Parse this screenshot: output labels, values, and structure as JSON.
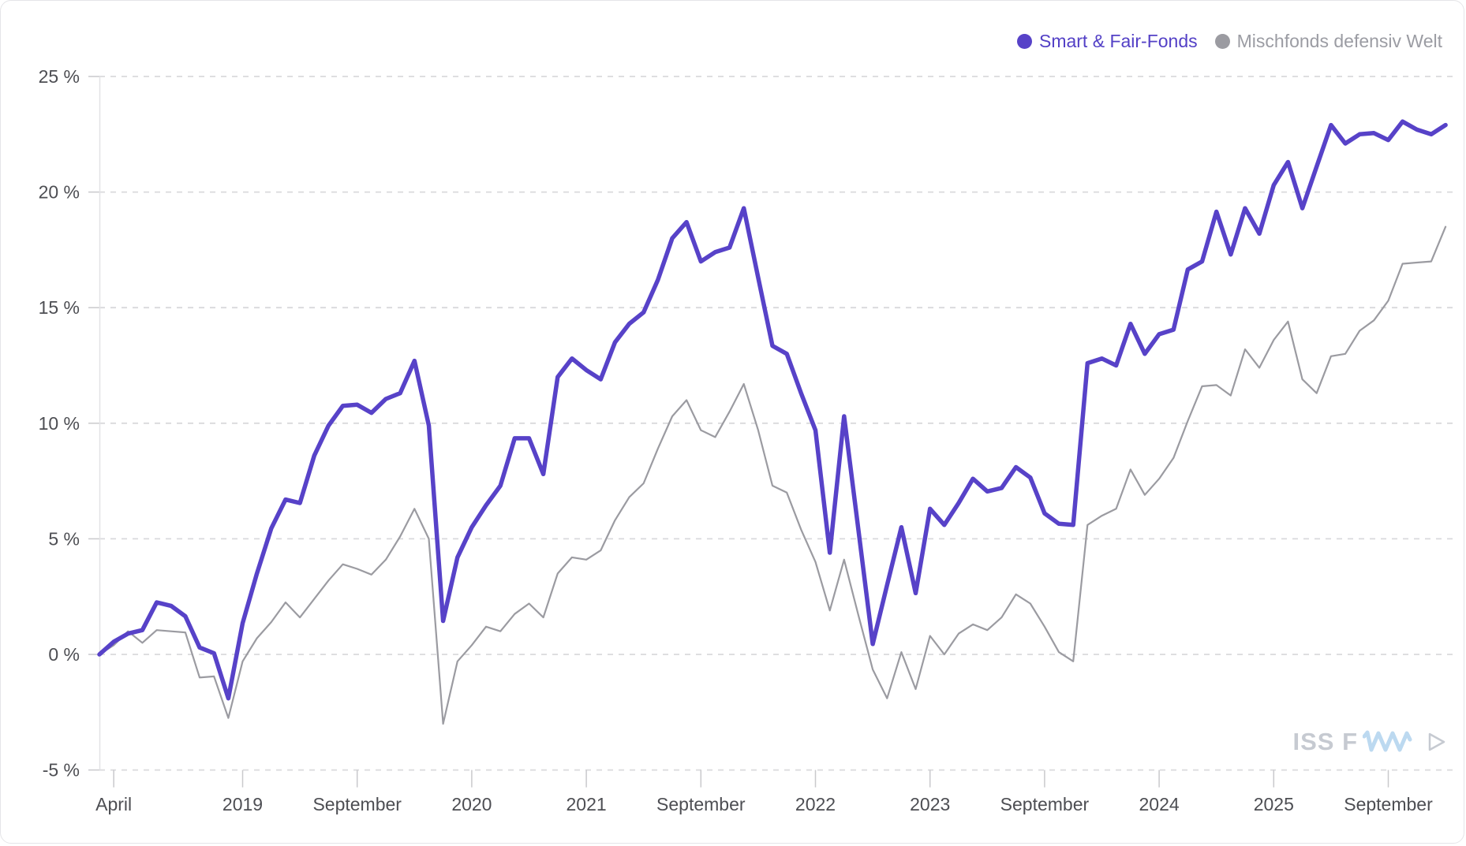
{
  "legend": {
    "items": [
      {
        "label": "Smart & Fair-Fonds",
        "color": "#5742c8",
        "text_color": "#5340c6"
      },
      {
        "label": "Mischfonds defensiv Welt",
        "color": "#9b9ba1",
        "text_color": "#9b9ca3"
      }
    ]
  },
  "watermark": {
    "text": "ISS F",
    "zigzag_color": "#bcd9f0",
    "glyph_color": "#c6cad1"
  },
  "chart_data": {
    "type": "line",
    "title": "",
    "xlabel": "",
    "ylabel": "",
    "ylim": [
      -5,
      25
    ],
    "grid": "dashed-horizontal",
    "legend_position": "top-right",
    "y_ticks": [
      {
        "value": 25,
        "label": "25 %"
      },
      {
        "value": 20,
        "label": "20 %"
      },
      {
        "value": 15,
        "label": "15 %"
      },
      {
        "value": 10,
        "label": "10 %"
      },
      {
        "value": 5,
        "label": "5 %"
      },
      {
        "value": 0,
        "label": "0 %"
      },
      {
        "value": -5,
        "label": "-5 %"
      }
    ],
    "x_ticks": [
      {
        "index": 1,
        "label": "April"
      },
      {
        "index": 10,
        "label": "2019"
      },
      {
        "index": 18,
        "label": "September"
      },
      {
        "index": 26,
        "label": "2020"
      },
      {
        "index": 34,
        "label": "2021"
      },
      {
        "index": 42,
        "label": "September"
      },
      {
        "index": 50,
        "label": "2022"
      },
      {
        "index": 58,
        "label": "2023"
      },
      {
        "index": 66,
        "label": "September"
      },
      {
        "index": 74,
        "label": "2024"
      },
      {
        "index": 82,
        "label": "2025"
      },
      {
        "index": 90,
        "label": "September"
      }
    ],
    "categories": [
      "2018-03",
      "2018-04",
      "2018-05",
      "2018-06",
      "2018-07",
      "2018-08",
      "2018-09",
      "2018-10",
      "2018-11",
      "2018-12",
      "2019-01",
      "2019-02",
      "2019-03",
      "2019-04",
      "2019-05",
      "2019-06",
      "2019-07",
      "2019-08",
      "2019-09",
      "2019-10",
      "2019-11",
      "2019-12",
      "2020-01",
      "2020-02",
      "2020-03",
      "2020-04",
      "2020-05",
      "2020-06",
      "2020-07",
      "2020-08",
      "2020-09",
      "2020-10",
      "2020-11",
      "2020-12",
      "2021-01",
      "2021-02",
      "2021-03",
      "2021-04",
      "2021-05",
      "2021-06",
      "2021-07",
      "2021-08",
      "2021-09",
      "2021-10",
      "2021-11",
      "2021-12",
      "2022-01",
      "2022-02",
      "2022-03",
      "2022-04",
      "2022-05",
      "2022-06",
      "2022-07",
      "2022-08",
      "2022-09",
      "2022-10",
      "2022-11",
      "2022-12",
      "2023-01",
      "2023-02",
      "2023-03",
      "2023-04",
      "2023-05",
      "2023-06",
      "2023-07",
      "2023-08",
      "2023-09",
      "2023-10",
      "2023-11",
      "2023-12",
      "2024-01",
      "2024-02",
      "2024-03",
      "2024-04",
      "2024-05",
      "2024-06",
      "2024-07",
      "2024-08",
      "2024-09",
      "2024-10",
      "2024-11",
      "2024-12",
      "2025-01",
      "2025-02",
      "2025-03",
      "2025-04",
      "2025-05",
      "2025-06",
      "2025-07",
      "2025-08",
      "2025-09",
      "2025-10",
      "2025-11",
      "2025-12",
      "2026-01"
    ],
    "series": [
      {
        "name": "Smart & Fair-Fonds",
        "color": "#5742c8",
        "line_width": 5.5,
        "values": [
          0.0,
          0.55,
          0.9,
          1.05,
          2.25,
          2.1,
          1.65,
          0.3,
          0.05,
          -1.9,
          1.35,
          3.5,
          5.45,
          6.7,
          6.55,
          8.6,
          9.9,
          10.75,
          10.8,
          10.45,
          11.05,
          11.3,
          12.7,
          9.9,
          1.45,
          4.2,
          5.5,
          6.45,
          7.3,
          9.35,
          9.35,
          7.8,
          12.0,
          12.8,
          12.3,
          11.9,
          13.5,
          14.3,
          14.8,
          16.2,
          18.0,
          18.7,
          17.0,
          17.4,
          17.6,
          19.3,
          16.3,
          13.35,
          13.0,
          11.3,
          9.7,
          4.4,
          10.3,
          5.4,
          0.45,
          3.0,
          5.5,
          2.65,
          6.3,
          5.6,
          6.55,
          7.6,
          7.05,
          7.2,
          8.1,
          7.65,
          6.1,
          5.65,
          5.6,
          12.6,
          12.8,
          12.5,
          14.3,
          13.0,
          13.85,
          14.05,
          16.65,
          17.0,
          19.15,
          17.3,
          19.3,
          18.2,
          20.3,
          21.3,
          19.3,
          21.1,
          22.9,
          22.1,
          22.5,
          22.55,
          22.25,
          23.05,
          22.7,
          22.5,
          22.9
        ]
      },
      {
        "name": "Mischfonds defensiv Welt",
        "color": "#9b9ba1",
        "line_width": 2.2,
        "values": [
          0.0,
          0.4,
          1.0,
          0.5,
          1.05,
          1.0,
          0.95,
          -1.0,
          -0.95,
          -2.75,
          -0.3,
          0.7,
          1.4,
          2.25,
          1.6,
          2.4,
          3.2,
          3.9,
          3.7,
          3.45,
          4.1,
          5.1,
          6.3,
          5.0,
          -3.0,
          -0.3,
          0.4,
          1.2,
          1.0,
          1.75,
          2.2,
          1.6,
          3.5,
          4.2,
          4.1,
          4.5,
          5.8,
          6.8,
          7.4,
          8.9,
          10.3,
          11.0,
          9.7,
          9.4,
          10.5,
          11.7,
          9.7,
          7.3,
          7.0,
          5.4,
          4.0,
          1.9,
          4.1,
          1.7,
          -0.65,
          -1.9,
          0.1,
          -1.5,
          0.8,
          0.0,
          0.9,
          1.3,
          1.05,
          1.6,
          2.6,
          2.2,
          1.2,
          0.1,
          -0.3,
          5.6,
          6.0,
          6.3,
          8.0,
          6.9,
          7.6,
          8.5,
          10.1,
          11.6,
          11.65,
          11.2,
          13.2,
          12.4,
          13.6,
          14.4,
          11.9,
          11.3,
          12.9,
          13.0,
          14.0,
          14.45,
          15.3,
          16.9,
          16.95,
          17.0,
          18.5
        ]
      }
    ]
  }
}
